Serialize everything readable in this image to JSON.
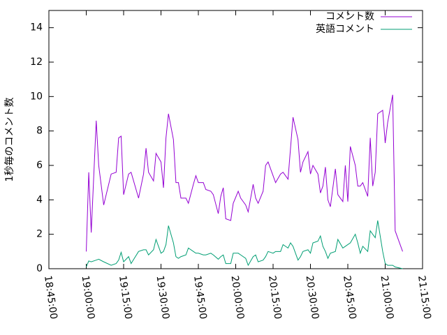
{
  "chart_data": {
    "type": "line",
    "ylabel": "1秒毎のコメント数",
    "x": [
      "19:00:00",
      "19:01:00",
      "19:02:00",
      "19:04:00",
      "19:05:00",
      "19:07:00",
      "19:10:00",
      "19:12:00",
      "19:13:00",
      "19:14:00",
      "19:15:00",
      "19:17:00",
      "19:18:00",
      "19:21:00",
      "19:23:00",
      "19:24:00",
      "19:25:00",
      "19:27:00",
      "19:28:00",
      "19:30:00",
      "19:31:00",
      "19:32:00",
      "19:33:00",
      "19:35:00",
      "19:36:00",
      "19:37:00",
      "19:38:00",
      "19:40:00",
      "19:41:00",
      "19:43:00",
      "19:44:00",
      "19:45:00",
      "19:47:00",
      "19:48:00",
      "19:50:00",
      "19:51:00",
      "19:53:00",
      "19:54:00",
      "19:55:00",
      "19:56:00",
      "19:58:00",
      "19:59:00",
      "20:01:00",
      "20:02:00",
      "20:04:00",
      "20:05:00",
      "20:07:00",
      "20:08:00",
      "20:09:00",
      "20:11:00",
      "20:12:00",
      "20:13:00",
      "20:15:00",
      "20:16:00",
      "20:18:00",
      "20:19:00",
      "20:21:00",
      "20:22:00",
      "20:23:00",
      "20:25:00",
      "20:26:00",
      "20:27:00",
      "20:29:00",
      "20:30:00",
      "20:31:00",
      "20:33:00",
      "20:34:00",
      "20:35:00",
      "20:36:00",
      "20:37:00",
      "20:38:00",
      "20:40:00",
      "20:41:00",
      "20:43:00",
      "20:44:00",
      "20:45:00",
      "20:46:00",
      "20:48:00",
      "20:49:00",
      "20:50:00",
      "20:51:00",
      "20:53:00",
      "20:54:00",
      "20:55:00",
      "20:56:00",
      "20:57:00",
      "20:59:00",
      "21:00:00",
      "21:01:00",
      "21:03:00",
      "21:04:00",
      "21:07:00"
    ],
    "series": [
      {
        "name": "コメント数",
        "color": "#9400d3",
        "values": [
          1.0,
          5.6,
          2.1,
          8.6,
          6.0,
          3.7,
          5.5,
          5.6,
          7.6,
          7.7,
          4.3,
          5.5,
          5.6,
          4.1,
          5.5,
          7.0,
          5.6,
          5.1,
          6.7,
          6.2,
          4.7,
          7.6,
          9.0,
          7.5,
          5.0,
          5.0,
          4.1,
          4.1,
          3.8,
          4.9,
          5.4,
          5.0,
          5.0,
          4.6,
          4.5,
          4.3,
          3.2,
          4.2,
          4.7,
          2.9,
          2.8,
          3.8,
          4.5,
          4.1,
          3.7,
          3.3,
          4.9,
          4.1,
          3.8,
          4.5,
          6.0,
          6.2,
          5.4,
          5.0,
          5.5,
          5.6,
          5.2,
          7.0,
          8.8,
          7.5,
          5.6,
          6.2,
          6.8,
          5.5,
          6.0,
          5.5,
          4.4,
          4.8,
          5.9,
          4.0,
          3.6,
          5.8,
          4.3,
          3.9,
          6.0,
          3.9,
          7.1,
          6.0,
          4.8,
          4.8,
          5.0,
          4.2,
          7.6,
          4.8,
          5.6,
          9.0,
          9.2,
          7.3,
          8.5,
          10.1,
          2.2,
          1.0
        ]
      },
      {
        "name": "英語コメント",
        "color": "#009e73",
        "values": [
          0.1,
          0.45,
          0.4,
          0.5,
          0.55,
          0.4,
          0.2,
          0.3,
          0.5,
          0.95,
          0.4,
          0.7,
          0.3,
          1.0,
          1.1,
          1.1,
          0.8,
          1.1,
          1.7,
          0.9,
          1.0,
          1.4,
          2.5,
          1.5,
          0.7,
          0.6,
          0.7,
          0.8,
          1.2,
          1.0,
          0.9,
          0.9,
          0.8,
          0.8,
          0.9,
          0.8,
          0.55,
          0.7,
          0.8,
          0.3,
          0.3,
          0.9,
          0.9,
          0.8,
          0.6,
          0.2,
          0.7,
          0.8,
          0.4,
          0.5,
          0.7,
          1.0,
          0.9,
          1.0,
          1.0,
          1.4,
          1.2,
          1.5,
          1.3,
          0.5,
          0.7,
          1.0,
          1.1,
          0.9,
          1.5,
          1.6,
          1.9,
          1.3,
          1.0,
          0.6,
          0.9,
          1.0,
          1.7,
          1.2,
          1.3,
          1.4,
          1.5,
          2.0,
          1.5,
          0.9,
          1.3,
          1.0,
          2.2,
          2.0,
          1.8,
          2.8,
          1.0,
          0.3,
          0.2,
          0.2,
          0.1,
          0.0
        ]
      }
    ],
    "xlim": [
      "18:45:00",
      "21:15:00"
    ],
    "xticks": [
      "18:45:00",
      "19:00:00",
      "19:15:00",
      "19:30:00",
      "19:45:00",
      "20:00:00",
      "20:15:00",
      "20:30:00",
      "20:45:00",
      "21:00:00",
      "21:15:00"
    ],
    "ylim": [
      0,
      15
    ],
    "yticks": [
      0,
      2,
      4,
      6,
      8,
      10,
      12,
      14
    ],
    "legend": "upper right",
    "grid": false
  }
}
